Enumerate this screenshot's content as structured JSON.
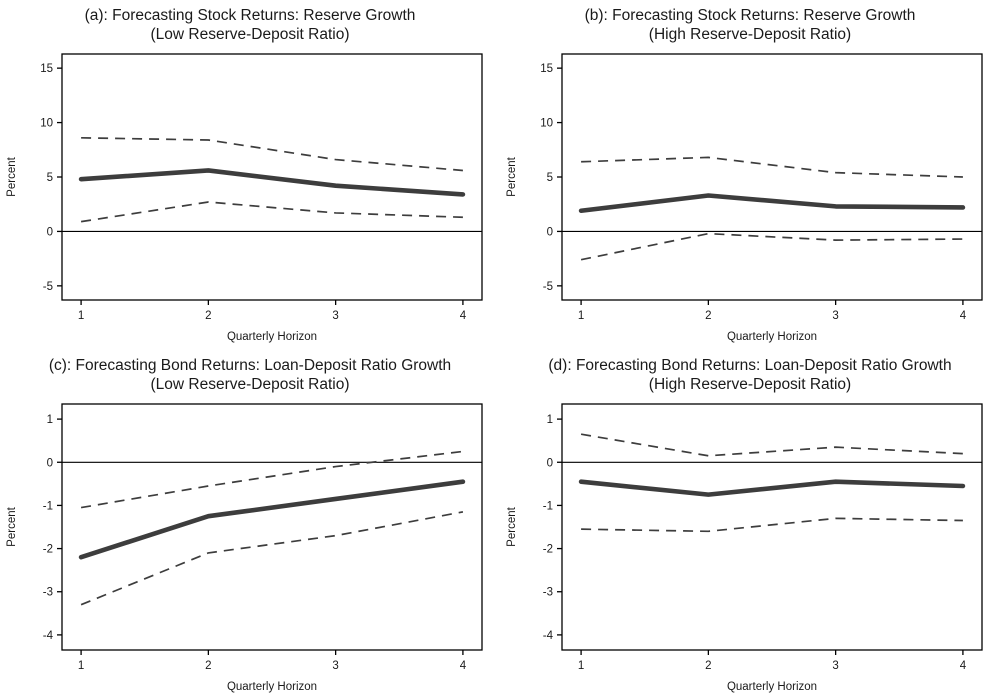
{
  "figure": {
    "background": "#ffffff",
    "axis_color": "#000000",
    "series_color": "#3d3d3d",
    "text_color": "#1a1a1a"
  },
  "chart_data": [
    {
      "type": "line",
      "title": "(a): Forecasting Stock Returns: Reserve Growth",
      "subtitle": "(Low Reserve-Deposit Ratio)",
      "xlabel": "Quarterly Horizon",
      "ylabel": "Percent",
      "x": [
        1,
        2,
        3,
        4
      ],
      "xticks": [
        1,
        2,
        3,
        4
      ],
      "xlim": [
        0.85,
        4.15
      ],
      "ylim": [
        -6.3,
        16.3
      ],
      "yticks": [
        -5,
        0,
        5,
        10,
        15
      ],
      "grid": false,
      "legend": "none",
      "zero_line": true,
      "series": [
        {
          "name": "point-estimate",
          "style": "solid",
          "values": [
            4.8,
            5.6,
            4.2,
            3.4
          ]
        },
        {
          "name": "upper-confidence-band",
          "style": "dashed",
          "values": [
            8.6,
            8.4,
            6.6,
            5.6
          ]
        },
        {
          "name": "lower-confidence-band",
          "style": "dashed",
          "values": [
            0.9,
            2.7,
            1.7,
            1.3
          ]
        }
      ]
    },
    {
      "type": "line",
      "title": "(b): Forecasting Stock Returns: Reserve Growth",
      "subtitle": "(High Reserve-Deposit Ratio)",
      "xlabel": "Quarterly Horizon",
      "ylabel": "Percent",
      "x": [
        1,
        2,
        3,
        4
      ],
      "xticks": [
        1,
        2,
        3,
        4
      ],
      "xlim": [
        0.85,
        4.15
      ],
      "ylim": [
        -6.3,
        16.3
      ],
      "yticks": [
        -5,
        0,
        5,
        10,
        15
      ],
      "grid": false,
      "legend": "none",
      "zero_line": true,
      "series": [
        {
          "name": "point-estimate",
          "style": "solid",
          "values": [
            1.9,
            3.3,
            2.3,
            2.2
          ]
        },
        {
          "name": "upper-confidence-band",
          "style": "dashed",
          "values": [
            6.4,
            6.8,
            5.4,
            5.0
          ]
        },
        {
          "name": "lower-confidence-band",
          "style": "dashed",
          "values": [
            -2.6,
            -0.2,
            -0.8,
            -0.7
          ]
        }
      ]
    },
    {
      "type": "line",
      "title": "(c): Forecasting Bond Returns: Loan-Deposit Ratio Growth",
      "subtitle": "(Low Reserve-Deposit Ratio)",
      "xlabel": "Quarterly Horizon",
      "ylabel": "Percent",
      "x": [
        1,
        2,
        3,
        4
      ],
      "xticks": [
        1,
        2,
        3,
        4
      ],
      "xlim": [
        0.85,
        4.15
      ],
      "ylim": [
        -4.35,
        1.35
      ],
      "yticks": [
        -4,
        -3,
        -2,
        -1,
        0,
        1
      ],
      "grid": false,
      "legend": "none",
      "zero_line": true,
      "series": [
        {
          "name": "point-estimate",
          "style": "solid",
          "values": [
            -2.2,
            -1.25,
            -0.85,
            -0.45
          ]
        },
        {
          "name": "upper-confidence-band",
          "style": "dashed",
          "values": [
            -1.05,
            -0.55,
            -0.1,
            0.25
          ]
        },
        {
          "name": "lower-confidence-band",
          "style": "dashed",
          "values": [
            -3.3,
            -2.1,
            -1.7,
            -1.15
          ]
        }
      ]
    },
    {
      "type": "line",
      "title": "(d): Forecasting Bond Returns: Loan-Deposit Ratio Growth",
      "subtitle": "(High Reserve-Deposit Ratio)",
      "xlabel": "Quarterly Horizon",
      "ylabel": "Percent",
      "x": [
        1,
        2,
        3,
        4
      ],
      "xticks": [
        1,
        2,
        3,
        4
      ],
      "xlim": [
        0.85,
        4.15
      ],
      "ylim": [
        -4.35,
        1.35
      ],
      "yticks": [
        -4,
        -3,
        -2,
        -1,
        0,
        1
      ],
      "grid": false,
      "legend": "none",
      "zero_line": true,
      "series": [
        {
          "name": "point-estimate",
          "style": "solid",
          "values": [
            -0.45,
            -0.75,
            -0.45,
            -0.55
          ]
        },
        {
          "name": "upper-confidence-band",
          "style": "dashed",
          "values": [
            0.65,
            0.15,
            0.35,
            0.2
          ]
        },
        {
          "name": "lower-confidence-band",
          "style": "dashed",
          "values": [
            -1.55,
            -1.6,
            -1.3,
            -1.35
          ]
        }
      ]
    }
  ]
}
